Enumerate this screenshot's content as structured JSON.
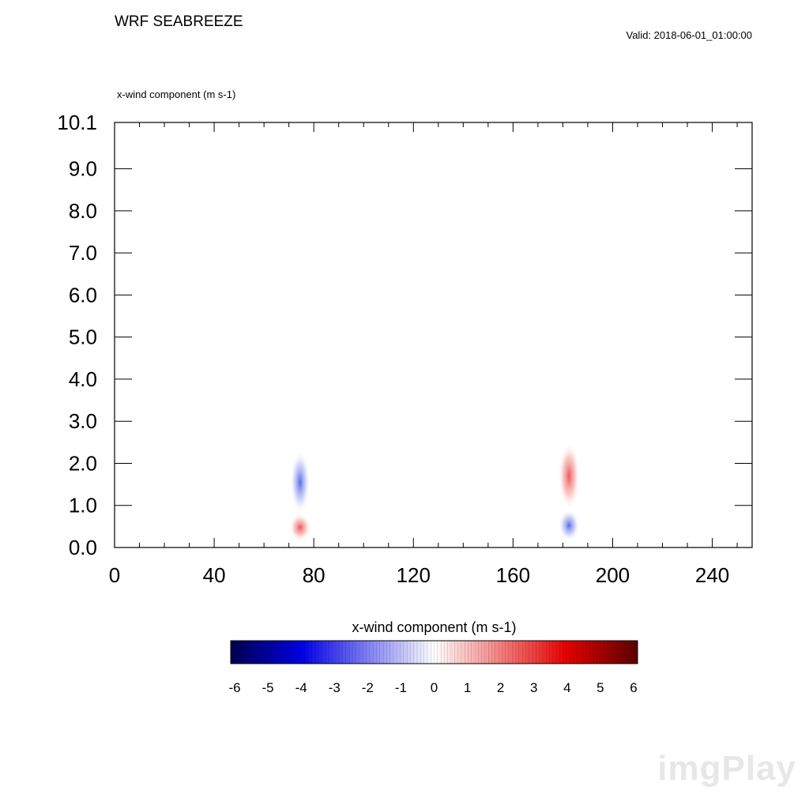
{
  "header": {
    "title": "WRF SEABREEZE",
    "valid": "Valid: 2018-06-01_01:00:00",
    "field_label": "x-wind component   (m s-1)"
  },
  "chart_data": {
    "type": "heatmap",
    "title": "WRF SEABREEZE",
    "field": "x-wind component",
    "units": "(m s-1)",
    "xlim": [
      0,
      256
    ],
    "ylim": [
      0.0,
      10.1
    ],
    "x_ticks": [
      0,
      40,
      80,
      120,
      160,
      200,
      240
    ],
    "x_tick_labels": [
      "0",
      "40",
      "80",
      "120",
      "160",
      "200",
      "240"
    ],
    "y_ticks": [
      0.0,
      1.0,
      2.0,
      3.0,
      4.0,
      5.0,
      6.0,
      7.0,
      8.0,
      9.0,
      10.1
    ],
    "y_tick_labels": [
      "0.0",
      "1.0",
      "2.0",
      "3.0",
      "4.0",
      "5.0",
      "6.0",
      "7.0",
      "8.0",
      "9.0",
      "10.1"
    ],
    "features": [
      {
        "x": 74.5,
        "y_low": 0.15,
        "y_high": 0.8,
        "peak": 1.8
      },
      {
        "x": 74.5,
        "y_low": 0.8,
        "y_high": 2.3,
        "peak": -1.3
      },
      {
        "x": 182.5,
        "y_low": 0.9,
        "y_high": 2.5,
        "peak": 1.9
      },
      {
        "x": 182.5,
        "y_low": 0.15,
        "y_high": 0.9,
        "peak": -1.7
      }
    ],
    "colorbar": {
      "title": "x-wind component  (m s-1)",
      "min": -6,
      "max": 6,
      "tick_labels": [
        "-6",
        "-5",
        "-4",
        "-3",
        "-2",
        "-1",
        "0",
        "1",
        "2",
        "3",
        "4",
        "5",
        "6"
      ],
      "colormap": "blue-white-red",
      "low_color": "#00004f",
      "mid_color": "#ffffff",
      "high_color": "#5c0000"
    }
  },
  "watermark": "imgPlay"
}
